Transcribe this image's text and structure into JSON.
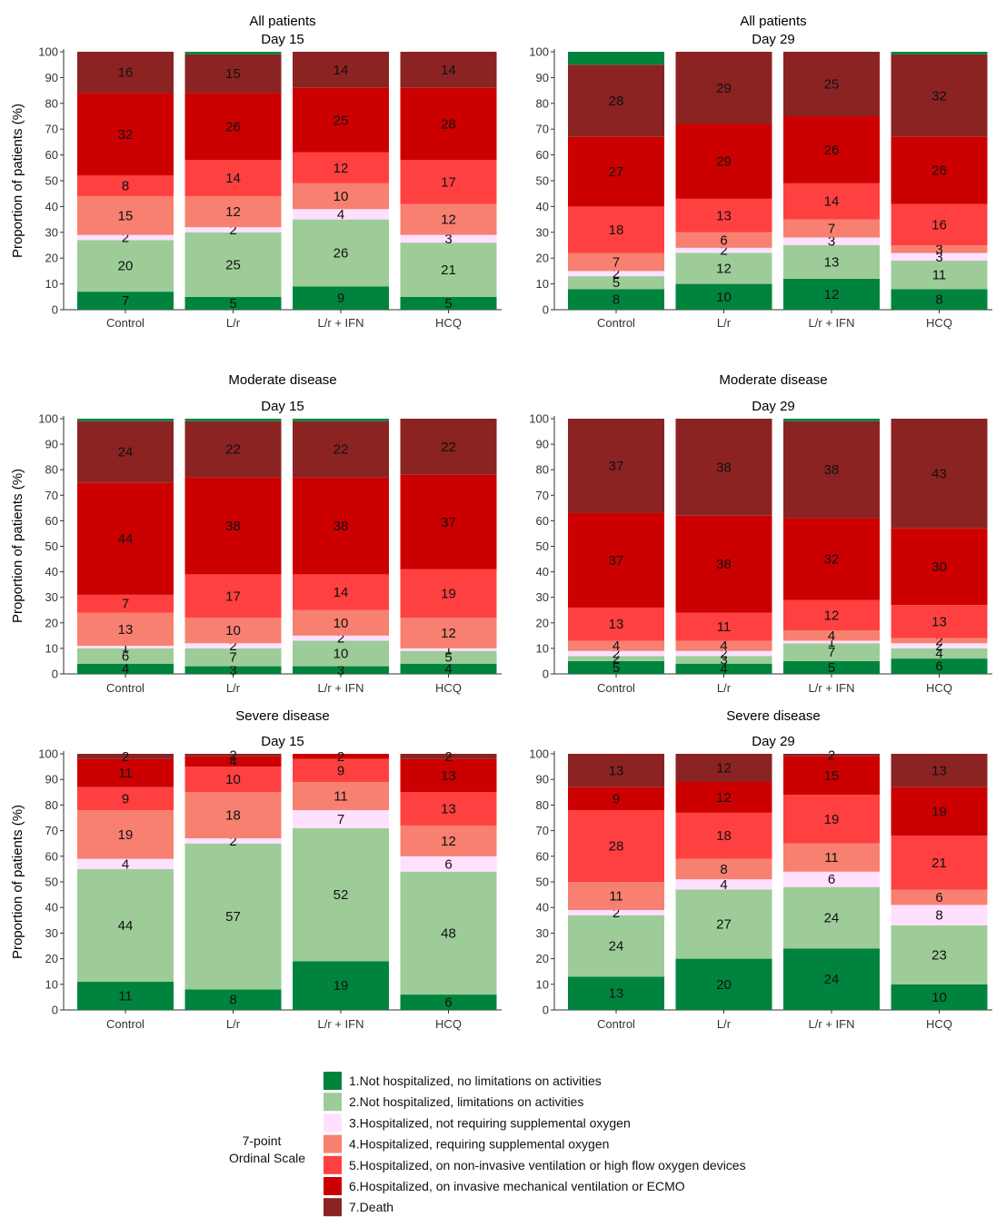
{
  "ylabel": "Proportion of patients (%)",
  "legend": {
    "title_lines": [
      "7-point",
      "Ordinal Scale"
    ],
    "items": [
      {
        "label": "1.Not hospitalized, no limitations on activities",
        "color": "#00843d"
      },
      {
        "label": "2.Not hospitalized, limitations on activities",
        "color": "#9dcc99"
      },
      {
        "label": "3.Hospitalized, not requiring supplemental oxygen",
        "color": "#ffe0ff"
      },
      {
        "label": "4.Hospitalized, requiring supplemental oxygen",
        "color": "#f88070"
      },
      {
        "label": "5.Hospitalized, on non-invasive ventilation or high flow oxygen devices",
        "color": "#ff4040"
      },
      {
        "label": "6.Hospitalized, on invasive mechanical ventilation or ECMO",
        "color": "#cc0000"
      },
      {
        "label": "7.Death",
        "color": "#8b2323"
      }
    ]
  },
  "chart_data": [
    {
      "type": "bar",
      "stacked": true,
      "title_lines": [
        "All patients",
        "Day 15"
      ],
      "categories": [
        "Control",
        "L/r",
        "L/r + IFN",
        "HCQ"
      ],
      "ylim": [
        0,
        100
      ],
      "yticks": [
        0,
        10,
        20,
        30,
        40,
        50,
        60,
        70,
        80,
        90,
        100
      ],
      "stacks": [
        [
          7,
          20,
          2,
          15,
          8,
          32,
          16
        ],
        [
          5,
          25,
          2,
          12,
          14,
          26,
          15
        ],
        [
          9,
          26,
          4,
          10,
          12,
          25,
          14
        ],
        [
          5,
          21,
          3,
          12,
          17,
          28,
          14
        ]
      ]
    },
    {
      "type": "bar",
      "stacked": true,
      "title_lines": [
        "All patients",
        "Day 29"
      ],
      "categories": [
        "Control",
        "L/r",
        "L/r + IFN",
        "HCQ"
      ],
      "ylim": [
        0,
        100
      ],
      "yticks": [
        0,
        10,
        20,
        30,
        40,
        50,
        60,
        70,
        80,
        90,
        100
      ],
      "stacks": [
        [
          8,
          5,
          2,
          7,
          18,
          27,
          28
        ],
        [
          10,
          12,
          2,
          6,
          13,
          29,
          29
        ],
        [
          12,
          13,
          3,
          7,
          14,
          26,
          25
        ],
        [
          8,
          11,
          3,
          3,
          16,
          26,
          32
        ]
      ]
    },
    {
      "type": "bar",
      "stacked": true,
      "title_lines": [
        "Moderate disease",
        "Day 15"
      ],
      "categories": [
        "Control",
        "L/r",
        "L/r + IFN",
        "HCQ"
      ],
      "ylim": [
        0,
        100
      ],
      "yticks": [
        0,
        10,
        20,
        30,
        40,
        50,
        60,
        70,
        80,
        90,
        100
      ],
      "stacks": [
        [
          4,
          6,
          1,
          13,
          7,
          44,
          24
        ],
        [
          3,
          7,
          2,
          10,
          17,
          38,
          22
        ],
        [
          3,
          10,
          2,
          10,
          14,
          38,
          22
        ],
        [
          4,
          5,
          1,
          12,
          19,
          37,
          22
        ]
      ]
    },
    {
      "type": "bar",
      "stacked": true,
      "title_lines": [
        "Moderate disease",
        "Day 29"
      ],
      "categories": [
        "Control",
        "L/r",
        "L/r + IFN",
        "HCQ"
      ],
      "ylim": [
        0,
        100
      ],
      "yticks": [
        0,
        10,
        20,
        30,
        40,
        50,
        60,
        70,
        80,
        90,
        100
      ],
      "stacks": [
        [
          5,
          2,
          2,
          4,
          13,
          37,
          37
        ],
        [
          4,
          3,
          2,
          4,
          11,
          38,
          38
        ],
        [
          5,
          7,
          1,
          4,
          12,
          32,
          38
        ],
        [
          6,
          4,
          2,
          2,
          13,
          30,
          43
        ]
      ]
    },
    {
      "type": "bar",
      "stacked": true,
      "title_lines": [
        "Severe disease",
        "Day 15"
      ],
      "categories": [
        "Control",
        "L/r",
        "L/r + IFN",
        "HCQ"
      ],
      "ylim": [
        0,
        100
      ],
      "yticks": [
        0,
        10,
        20,
        30,
        40,
        50,
        60,
        70,
        80,
        90,
        100
      ],
      "stacks": [
        [
          11,
          44,
          4,
          19,
          9,
          11,
          2
        ],
        [
          8,
          57,
          2,
          18,
          10,
          4,
          2
        ],
        [
          19,
          52,
          7,
          11,
          9,
          2,
          0
        ],
        [
          6,
          48,
          6,
          12,
          13,
          13,
          2
        ]
      ]
    },
    {
      "type": "bar",
      "stacked": true,
      "title_lines": [
        "Severe disease",
        "Day 29"
      ],
      "categories": [
        "Control",
        "L/r",
        "L/r + IFN",
        "HCQ"
      ],
      "ylim": [
        0,
        100
      ],
      "yticks": [
        0,
        10,
        20,
        30,
        40,
        50,
        60,
        70,
        80,
        90,
        100
      ],
      "stacks": [
        [
          13,
          24,
          2,
          11,
          28,
          9,
          13
        ],
        [
          20,
          27,
          4,
          8,
          18,
          12,
          12
        ],
        [
          24,
          24,
          6,
          11,
          19,
          15,
          2
        ],
        [
          10,
          23,
          8,
          6,
          21,
          19,
          13
        ]
      ]
    }
  ]
}
